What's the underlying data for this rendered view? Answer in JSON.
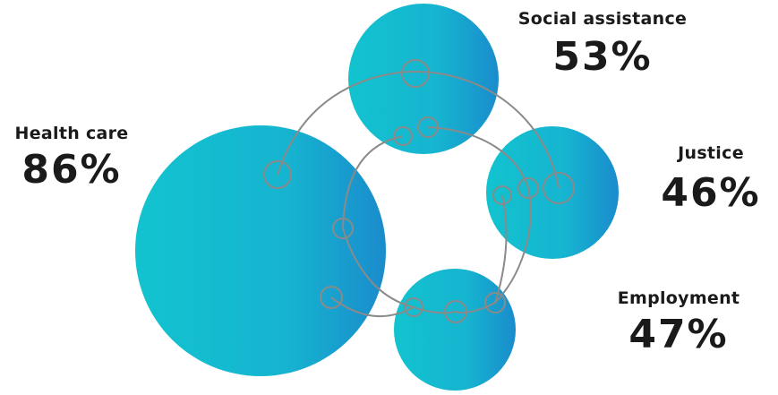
{
  "colors": {
    "bubble_start": "#12c3cf",
    "bubble_end": "#1a8ccc",
    "ring": "#8a8a8a",
    "text": "#1a1a1a"
  },
  "categories": [
    {
      "name": "Health care",
      "percent": "86%"
    },
    {
      "name": "Social assistance",
      "percent": "53%"
    },
    {
      "name": "Justice",
      "percent": "46%"
    },
    {
      "name": "Employment",
      "percent": "47%"
    }
  ]
}
